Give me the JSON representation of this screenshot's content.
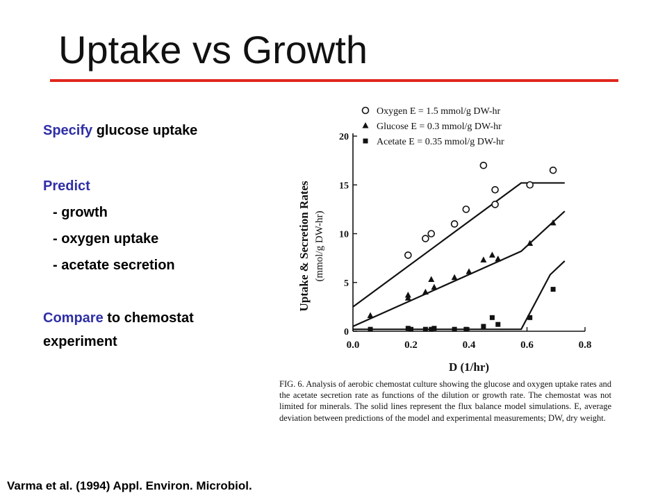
{
  "slide": {
    "title": "Uptake vs Growth",
    "accent_color": "#e0261c",
    "highlight_color": "#2f2fa6",
    "citation": "Varma et al. (1994) Appl. Environ. Microbiol."
  },
  "bullets": {
    "specify_keyword": "Specify",
    "specify_rest": " glucose uptake",
    "predict_keyword": "Predict",
    "predict_items": [
      "- growth",
      "- oxygen uptake",
      "- acetate secretion"
    ],
    "compare_keyword": "Compare",
    "compare_rest": " to chemostat",
    "compare_line2": "experiment"
  },
  "figure": {
    "caption": "FIG. 6. Analysis of aerobic chemostat culture showing the glucose and oxygen uptake rates and the acetate secretion rate as functions of the dilution or growth rate. The chemostat was not limited for minerals. The solid lines represent the flux balance model simulations. E, average deviation between predictions of the model and experimental measurements; DW, dry weight."
  },
  "chart_data": {
    "type": "scatter",
    "xlabel": "D (1/hr)",
    "ylabel": "Uptake & Secretion Rates",
    "ylabel2": "(mmol/g DW-hr)",
    "xlim": [
      0.0,
      0.8
    ],
    "ylim": [
      0,
      20
    ],
    "x_ticks": [
      "0.0",
      "0.2",
      "0.4",
      "0.6",
      "0.8"
    ],
    "y_ticks": [
      "0",
      "5",
      "10",
      "15",
      "20"
    ],
    "grid": false,
    "legend_position": "top",
    "series": [
      {
        "name": "Oxygen",
        "legend_label": "Oxygen  E = 1.5 mmol/g DW-hr",
        "marker": "open-circle",
        "points": [
          [
            0.19,
            7.8
          ],
          [
            0.25,
            9.5
          ],
          [
            0.27,
            10.0
          ],
          [
            0.35,
            11.0
          ],
          [
            0.39,
            12.5
          ],
          [
            0.45,
            17.0
          ],
          [
            0.49,
            14.5
          ],
          [
            0.49,
            13.0
          ],
          [
            0.61,
            15.0
          ],
          [
            0.69,
            16.5
          ]
        ],
        "model_line": [
          [
            0.0,
            2.5
          ],
          [
            0.58,
            15.2
          ],
          [
            0.73,
            15.2
          ]
        ]
      },
      {
        "name": "Glucose",
        "legend_label": "Glucose  E = 0.3 mmol/g DW-hr",
        "marker": "filled-triangle",
        "points": [
          [
            0.06,
            1.6
          ],
          [
            0.19,
            3.4
          ],
          [
            0.19,
            3.7
          ],
          [
            0.25,
            4.0
          ],
          [
            0.27,
            5.3
          ],
          [
            0.28,
            4.5
          ],
          [
            0.35,
            5.5
          ],
          [
            0.4,
            6.1
          ],
          [
            0.45,
            7.3
          ],
          [
            0.48,
            7.8
          ],
          [
            0.5,
            7.4
          ],
          [
            0.61,
            9.0
          ],
          [
            0.69,
            11.1
          ]
        ],
        "model_line": [
          [
            0.0,
            0.5
          ],
          [
            0.58,
            8.2
          ],
          [
            0.73,
            12.3
          ]
        ]
      },
      {
        "name": "Acetate",
        "legend_label": "Acetate  E = 0.35 mmol/g DW-hr",
        "marker": "filled-square",
        "points": [
          [
            0.06,
            0.2
          ],
          [
            0.19,
            0.3
          ],
          [
            0.2,
            0.2
          ],
          [
            0.25,
            0.2
          ],
          [
            0.27,
            0.2
          ],
          [
            0.28,
            0.3
          ],
          [
            0.35,
            0.2
          ],
          [
            0.39,
            0.2
          ],
          [
            0.45,
            0.5
          ],
          [
            0.48,
            1.4
          ],
          [
            0.5,
            0.7
          ],
          [
            0.61,
            1.4
          ],
          [
            0.69,
            4.3
          ]
        ],
        "model_line": [
          [
            0.0,
            0.2
          ],
          [
            0.58,
            0.2
          ],
          [
            0.68,
            5.8
          ],
          [
            0.73,
            7.2
          ]
        ]
      }
    ]
  }
}
